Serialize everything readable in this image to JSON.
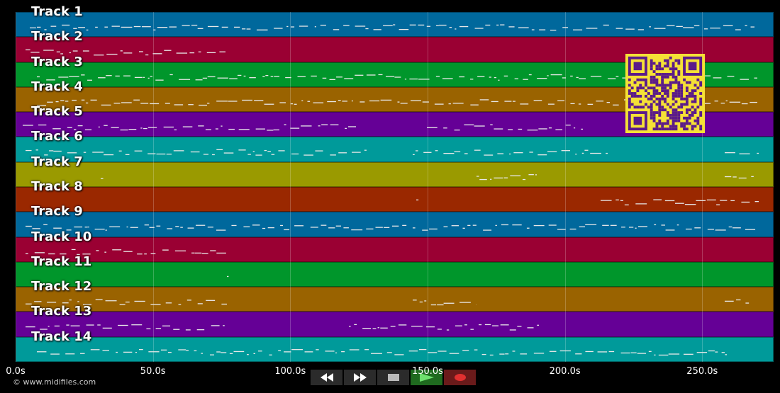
{
  "tracks": [
    {
      "label": "Track 1",
      "color": "#00689c"
    },
    {
      "label": "Track 2",
      "color": "#9a0033"
    },
    {
      "label": "Track 3",
      "color": "#00962b"
    },
    {
      "label": "Track 4",
      "color": "#9a6300"
    },
    {
      "label": "Track 5",
      "color": "#650096"
    },
    {
      "label": "Track 6",
      "color": "#009a9a"
    },
    {
      "label": "Track 7",
      "color": "#9a9a00"
    },
    {
      "label": "Track 8",
      "color": "#9a2800"
    },
    {
      "label": "Track 9",
      "color": "#00689c"
    },
    {
      "label": "Track 10",
      "color": "#9a0033"
    },
    {
      "label": "Track 11",
      "color": "#00962b"
    },
    {
      "label": "Track 12",
      "color": "#9a6300"
    },
    {
      "label": "Track 13",
      "color": "#650096"
    },
    {
      "label": "Track 14",
      "color": "#009a9a"
    }
  ],
  "timeline": {
    "ticks": [
      "0.0s",
      "50.0s",
      "100.0s",
      "150.0s",
      "200.0s",
      "250.0s"
    ],
    "tick_values": [
      0,
      50,
      100,
      150,
      200,
      250
    ],
    "max_seconds": 276
  },
  "copyright": "© www.midifiles.com",
  "controls": {
    "rewind_icon": "rewind-icon",
    "forward_icon": "fast-forward-icon",
    "stop_icon": "stop-icon",
    "play_icon": "play-icon",
    "record_icon": "record-icon",
    "play_color": "#2fbf2f",
    "record_color": "#e03030"
  },
  "qr_color": "#f5e136",
  "qr_dark": "#5a1a8a"
}
